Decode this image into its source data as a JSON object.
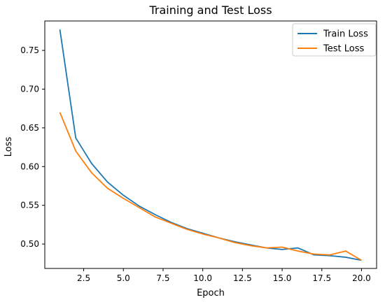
{
  "chart_data": {
    "type": "line",
    "title": "Training and Test Loss",
    "xlabel": "Epoch",
    "ylabel": "Loss",
    "xlim": [
      0.05,
      20.95
    ],
    "ylim": [
      0.4685,
      0.788
    ],
    "xticks": [
      2.5,
      5.0,
      7.5,
      10.0,
      12.5,
      15.0,
      17.5,
      20.0
    ],
    "xtick_labels": [
      "2.5",
      "5.0",
      "7.5",
      "10.0",
      "12.5",
      "15.0",
      "17.5",
      "20.0"
    ],
    "yticks": [
      0.5,
      0.55,
      0.6,
      0.65,
      0.7,
      0.75
    ],
    "ytick_labels": [
      "0.50",
      "0.55",
      "0.60",
      "0.65",
      "0.70",
      "0.75"
    ],
    "grid": false,
    "legend_position": "top-right",
    "x": [
      1,
      2,
      3,
      4,
      5,
      6,
      7,
      8,
      9,
      10,
      11,
      12,
      13,
      14,
      15,
      16,
      17,
      18,
      19,
      20
    ],
    "series": [
      {
        "name": "Train Loss",
        "color": "#1f77b4",
        "values": [
          0.777,
          0.637,
          0.604,
          0.58,
          0.563,
          0.549,
          0.538,
          0.528,
          0.52,
          0.514,
          0.508,
          0.503,
          0.499,
          0.495,
          0.493,
          0.495,
          0.486,
          0.485,
          0.483,
          0.479
        ]
      },
      {
        "name": "Test Loss",
        "color": "#ff7f0e",
        "values": [
          0.67,
          0.62,
          0.592,
          0.572,
          0.559,
          0.547,
          0.535,
          0.527,
          0.519,
          0.513,
          0.508,
          0.502,
          0.498,
          0.495,
          0.496,
          0.491,
          0.487,
          0.486,
          0.491,
          0.479
        ]
      }
    ]
  }
}
